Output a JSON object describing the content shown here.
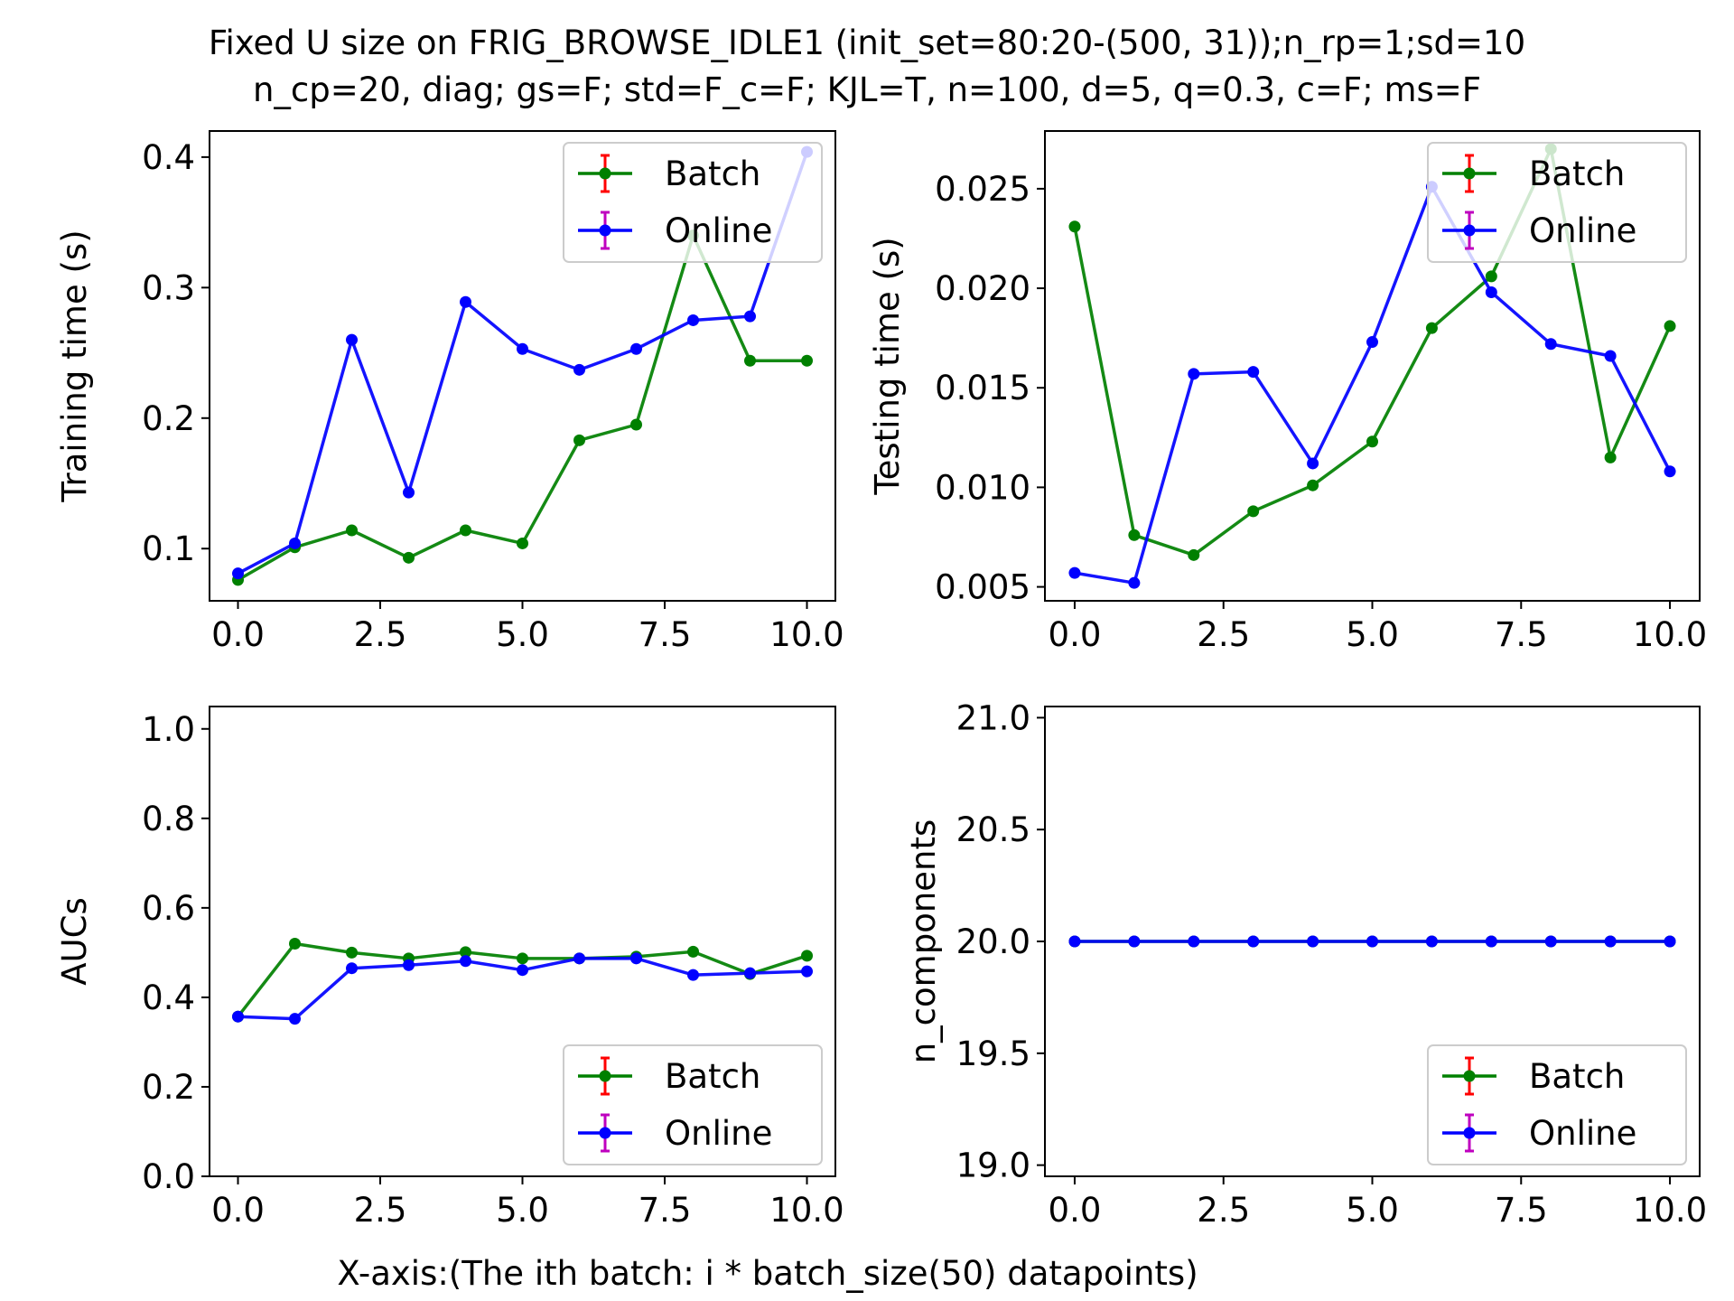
{
  "figure": {
    "title_line1": "Fixed U size on FRIG_BROWSE_IDLE1 (init_set=80:20-(500, 31));n_rp=1;sd=10",
    "title_line2": "n_cp=20, diag; gs=F; std=F_c=F; KJL=T, n=100, d=5, q=0.3, c=F; ms=F",
    "xlabel": "X-axis:(The ith batch: i * batch_size(50) datapoints)"
  },
  "colors": {
    "batch": "#008000",
    "online": "#0000ff",
    "batch_err": "#ff0000",
    "online_err": "#bf00bf"
  },
  "chart_data": [
    {
      "type": "line",
      "ylabel": "Training time (s)",
      "xlim": [
        -0.5,
        10.5
      ],
      "ylim": [
        0.06,
        0.42
      ],
      "xticks": [
        "0.0",
        "2.5",
        "5.0",
        "7.5",
        "10.0"
      ],
      "yticks": [
        "0.1",
        "0.2",
        "0.3",
        "0.4"
      ],
      "legend": "upper right",
      "x": [
        0,
        1,
        2,
        3,
        4,
        5,
        6,
        7,
        8,
        9,
        10
      ],
      "series": [
        {
          "name": "Batch",
          "values": [
            0.076,
            0.101,
            0.114,
            0.093,
            0.114,
            0.104,
            0.183,
            0.195,
            0.34,
            0.244,
            0.244
          ]
        },
        {
          "name": "Online",
          "values": [
            0.081,
            0.104,
            0.26,
            0.143,
            0.289,
            0.253,
            0.237,
            0.253,
            0.275,
            0.278,
            0.404
          ]
        }
      ]
    },
    {
      "type": "line",
      "ylabel": "Testing time (s)",
      "xlim": [
        -0.5,
        10.5
      ],
      "ylim": [
        0.0043,
        0.0279
      ],
      "xticks": [
        "0.0",
        "2.5",
        "5.0",
        "7.5",
        "10.0"
      ],
      "yticks": [
        "0.005",
        "0.010",
        "0.015",
        "0.020",
        "0.025"
      ],
      "legend": "upper right",
      "x": [
        0,
        1,
        2,
        3,
        4,
        5,
        6,
        7,
        8,
        9,
        10
      ],
      "series": [
        {
          "name": "Batch",
          "values": [
            0.0231,
            0.0076,
            0.0066,
            0.0088,
            0.0101,
            0.0123,
            0.018,
            0.0206,
            0.027,
            0.0115,
            0.0181
          ]
        },
        {
          "name": "Online",
          "values": [
            0.0057,
            0.0052,
            0.0157,
            0.0158,
            0.0112,
            0.0173,
            0.0251,
            0.0198,
            0.0172,
            0.0166,
            0.0108
          ]
        }
      ]
    },
    {
      "type": "line",
      "ylabel": "AUCs",
      "xlim": [
        -0.5,
        10.5
      ],
      "ylim": [
        0.0,
        1.05
      ],
      "xticks": [
        "0.0",
        "2.5",
        "5.0",
        "7.5",
        "10.0"
      ],
      "yticks": [
        "0.0",
        "0.2",
        "0.4",
        "0.6",
        "0.8",
        "1.0"
      ],
      "legend": "lower right",
      "x": [
        0,
        1,
        2,
        3,
        4,
        5,
        6,
        7,
        8,
        9,
        10
      ],
      "series": [
        {
          "name": "Batch",
          "values": [
            0.357,
            0.52,
            0.5,
            0.487,
            0.501,
            0.487,
            0.487,
            0.491,
            0.502,
            0.452,
            0.493
          ]
        },
        {
          "name": "Online",
          "values": [
            0.357,
            0.352,
            0.465,
            0.472,
            0.481,
            0.461,
            0.487,
            0.487,
            0.45,
            0.454,
            0.458
          ]
        }
      ]
    },
    {
      "type": "line",
      "ylabel": "n_components",
      "xlim": [
        -0.5,
        10.5
      ],
      "ylim": [
        18.95,
        21.05
      ],
      "xticks": [
        "0.0",
        "2.5",
        "5.0",
        "7.5",
        "10.0"
      ],
      "yticks": [
        "19.0",
        "19.5",
        "20.0",
        "20.5",
        "21.0"
      ],
      "legend": "lower right",
      "x": [
        0,
        1,
        2,
        3,
        4,
        5,
        6,
        7,
        8,
        9,
        10
      ],
      "series": [
        {
          "name": "Batch",
          "values": [
            20,
            20,
            20,
            20,
            20,
            20,
            20,
            20,
            20,
            20,
            20
          ]
        },
        {
          "name": "Online",
          "values": [
            20,
            20,
            20,
            20,
            20,
            20,
            20,
            20,
            20,
            20,
            20
          ]
        }
      ]
    }
  ]
}
